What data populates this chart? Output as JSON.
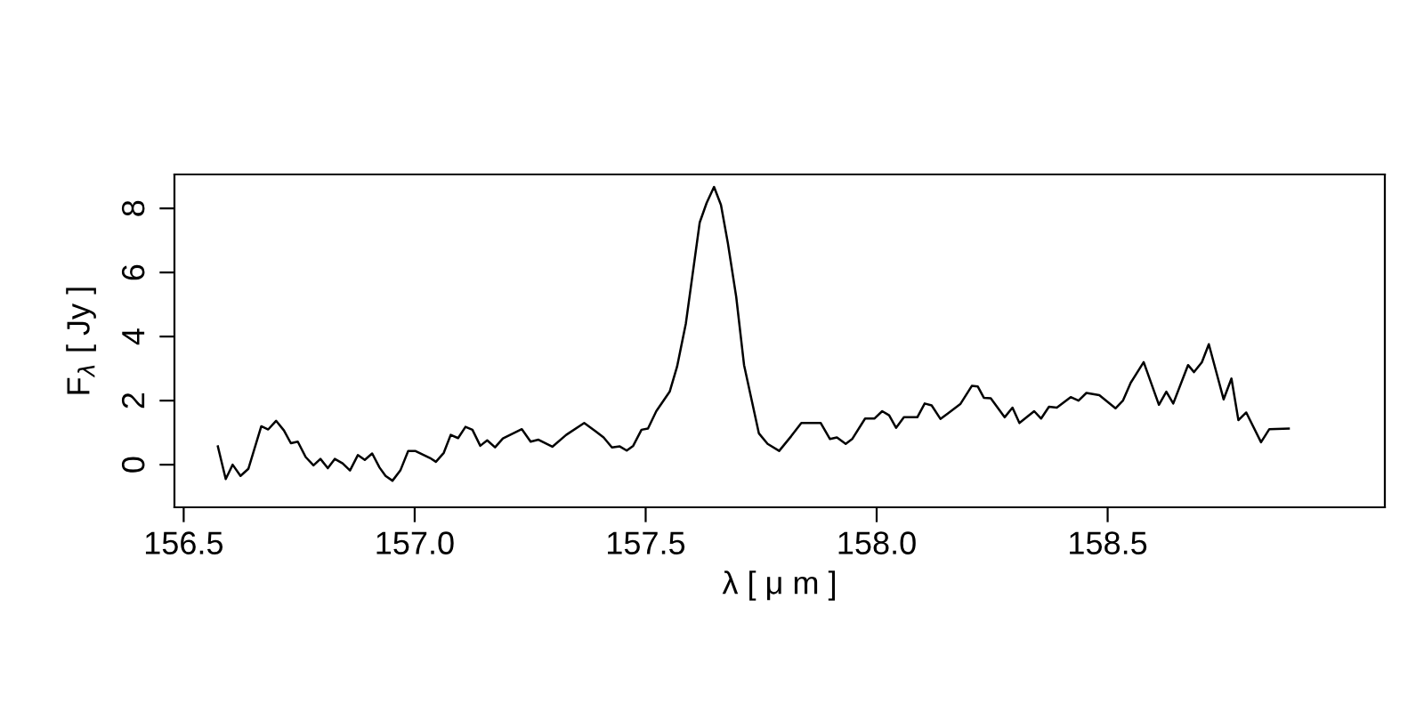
{
  "chart_data": {
    "type": "line",
    "xlabel": "λ [ μ m ]",
    "ylabel": "F$_{λ}$ [ Jy ]",
    "xlim": [
      156.48,
      159.1
    ],
    "ylim": [
      -1.33,
      9.06
    ],
    "xticks": [
      {
        "value": 156.5,
        "label": "156.5"
      },
      {
        "value": 157.0,
        "label": "157.0"
      },
      {
        "value": 157.5,
        "label": "157.5"
      },
      {
        "value": 158.0,
        "label": "158.0"
      },
      {
        "value": 158.5,
        "label": "158.5"
      }
    ],
    "yticks": [
      0,
      2,
      4,
      6,
      8
    ],
    "marker": "none",
    "line_style": "solid",
    "series": [
      {
        "color": "#000000",
        "x": [
          156.574,
          156.591,
          156.606,
          156.623,
          156.64,
          156.668,
          156.683,
          156.7,
          156.717,
          156.732,
          156.747,
          156.764,
          156.781,
          156.796,
          156.812,
          156.827,
          156.844,
          156.86,
          156.877,
          156.892,
          156.908,
          156.924,
          156.937,
          156.952,
          156.969,
          156.986,
          157.001,
          157.033,
          157.046,
          157.063,
          157.078,
          157.094,
          157.11,
          157.125,
          157.142,
          157.157,
          157.174,
          157.191,
          157.232,
          157.251,
          157.268,
          157.298,
          157.328,
          157.367,
          157.392,
          157.409,
          157.427,
          157.444,
          157.459,
          157.473,
          157.491,
          157.505,
          157.523,
          157.552,
          157.568,
          157.587,
          157.617,
          157.632,
          157.648,
          157.663,
          157.678,
          157.696,
          157.713,
          157.745,
          157.764,
          157.789,
          157.815,
          157.837,
          157.86,
          157.879,
          157.899,
          157.914,
          157.933,
          157.947,
          157.975,
          157.995,
          158.012,
          158.027,
          158.042,
          158.059,
          158.088,
          158.104,
          158.119,
          158.138,
          158.155,
          158.181,
          158.206,
          158.219,
          158.232,
          158.247,
          158.277,
          158.294,
          158.309,
          158.341,
          158.356,
          158.373,
          158.39,
          158.42,
          158.437,
          158.454,
          158.482,
          158.517,
          158.533,
          158.55,
          158.578,
          158.611,
          158.627,
          158.642,
          158.674,
          158.687,
          158.704,
          158.719,
          158.738,
          158.751,
          158.768,
          158.783,
          158.8,
          158.832,
          158.85,
          158.892
        ],
        "values": [
          0.57,
          -0.45,
          0.0,
          -0.35,
          -0.13,
          1.2,
          1.1,
          1.37,
          1.07,
          0.67,
          0.72,
          0.24,
          -0.02,
          0.18,
          -0.11,
          0.18,
          0.04,
          -0.18,
          0.3,
          0.15,
          0.35,
          -0.09,
          -0.35,
          -0.5,
          -0.18,
          0.43,
          0.43,
          0.21,
          0.09,
          0.37,
          0.93,
          0.83,
          1.18,
          1.09,
          0.59,
          0.76,
          0.54,
          0.82,
          1.11,
          0.72,
          0.78,
          0.56,
          0.93,
          1.3,
          1.04,
          0.85,
          0.54,
          0.57,
          0.44,
          0.59,
          1.09,
          1.13,
          1.67,
          2.28,
          3.06,
          4.41,
          7.56,
          8.17,
          8.67,
          8.11,
          6.91,
          5.24,
          3.11,
          0.98,
          0.65,
          0.43,
          0.89,
          1.3,
          1.3,
          1.3,
          0.8,
          0.85,
          0.65,
          0.8,
          1.44,
          1.44,
          1.67,
          1.54,
          1.15,
          1.48,
          1.48,
          1.91,
          1.85,
          1.43,
          1.61,
          1.89,
          2.46,
          2.44,
          2.09,
          2.07,
          1.48,
          1.78,
          1.3,
          1.67,
          1.44,
          1.81,
          1.78,
          2.11,
          2.0,
          2.24,
          2.17,
          1.76,
          2.0,
          2.56,
          3.2,
          1.87,
          2.28,
          1.91,
          3.11,
          2.89,
          3.2,
          3.76,
          2.74,
          2.04,
          2.69,
          1.39,
          1.63,
          0.7,
          1.11,
          1.13
        ]
      }
    ]
  }
}
